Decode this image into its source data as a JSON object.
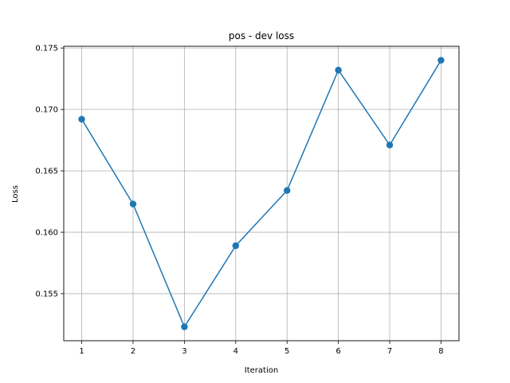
{
  "chart_data": {
    "type": "line",
    "title": "pos - dev loss",
    "xlabel": "Iteration",
    "ylabel": "Loss",
    "x": [
      1,
      2,
      3,
      4,
      5,
      6,
      7,
      8
    ],
    "series": [
      {
        "values": [
          0.1692,
          0.1623,
          0.1523,
          0.1589,
          0.1634,
          0.1732,
          0.1671,
          0.174
        ]
      }
    ],
    "xticks": [
      "1",
      "2",
      "3",
      "4",
      "5",
      "6",
      "7",
      "8"
    ],
    "yticks": [
      "0.155",
      "0.160",
      "0.165",
      "0.170",
      "0.175"
    ],
    "xlim": [
      0.65,
      8.35
    ],
    "ylim": [
      0.15117,
      0.17514
    ],
    "grid": true,
    "line_color": "#1f77b4"
  }
}
